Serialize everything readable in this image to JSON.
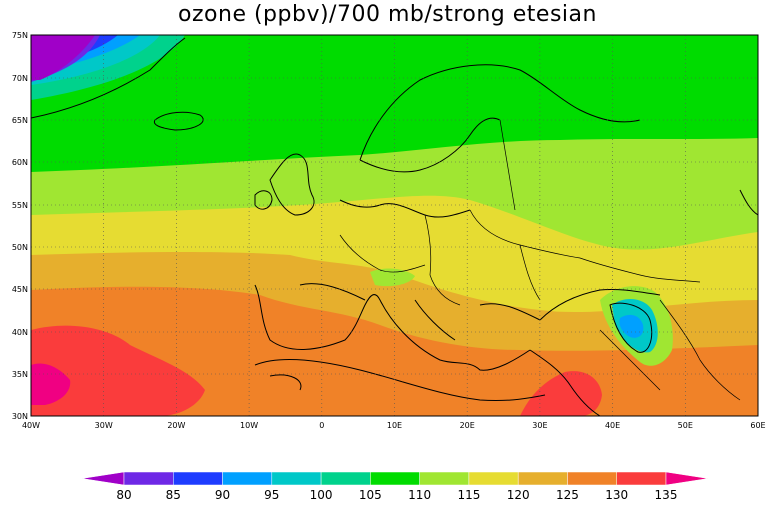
{
  "title": "ozone (ppbv)/700 mb/strong etesian",
  "lat_ticks": [
    "75N",
    "70N",
    "65N",
    "60N",
    "55N",
    "50N",
    "45N",
    "40N",
    "35N",
    "30N"
  ],
  "lon_ticks": [
    "40W",
    "30W",
    "20W",
    "10W",
    "0",
    "10E",
    "20E",
    "30E",
    "40E",
    "50E",
    "60E"
  ],
  "colorbar": {
    "levels": [
      "80",
      "85",
      "90",
      "95",
      "100",
      "105",
      "110",
      "115",
      "120",
      "125",
      "130",
      "135"
    ],
    "colors": [
      "#a000c8",
      "#6e28e6",
      "#1e3cff",
      "#00a0ff",
      "#00c8c8",
      "#00d28c",
      "#00dc00",
      "#a0e632",
      "#e6dc32",
      "#e6af2d",
      "#f08228",
      "#fa3c3c",
      "#f00082"
    ]
  },
  "map_colors": {
    "c80": "#a000c8",
    "c85": "#6e28e6",
    "c90": "#1e3cff",
    "c95": "#00a0ff",
    "c100": "#00c8c8",
    "c105": "#00d28c",
    "c110": "#00dc00",
    "c115": "#a0e632",
    "c120": "#e6dc32",
    "c125": "#e6af2d",
    "c130": "#f08228",
    "c135": "#fa3c3c",
    "c140": "#f00082"
  }
}
